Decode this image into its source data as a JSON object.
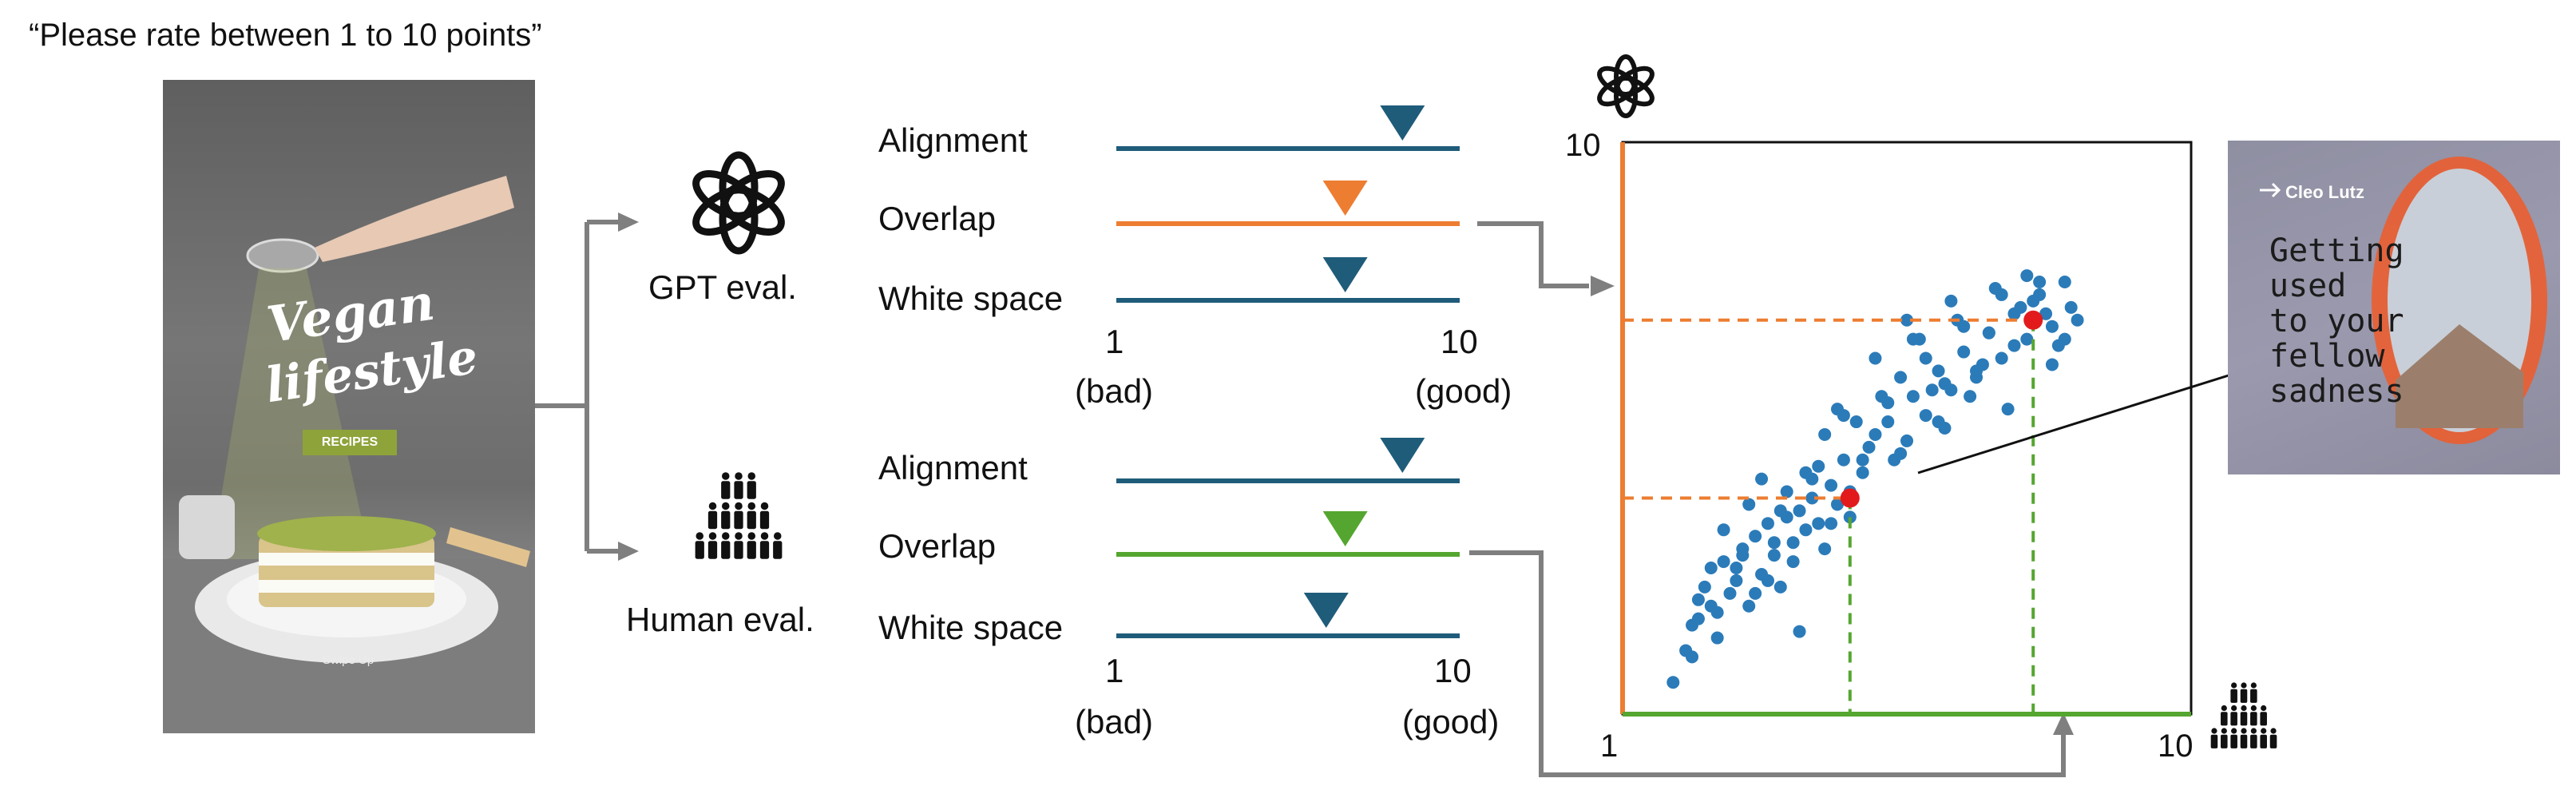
{
  "header": {
    "prompt": "“Please rate between 1 to 10 points”"
  },
  "poster": {
    "title_line1": "Vegan",
    "title_line2": "lifestyle",
    "badge": "RECIPES",
    "swipe": "Swipe Up"
  },
  "evaluators": {
    "gpt": "GPT eval.",
    "human": "Human eval."
  },
  "criteria": [
    "Alignment",
    "Overlap",
    "White space"
  ],
  "scale": {
    "min": "1",
    "max": "10",
    "min_label": "(bad)",
    "max_label": "(good)"
  },
  "ratings": {
    "gpt": [
      {
        "criterion": "Alignment",
        "value": 8.5
      },
      {
        "criterion": "Overlap",
        "value": 7.0
      },
      {
        "criterion": "White space",
        "value": 7.0
      }
    ],
    "human": [
      {
        "criterion": "Alignment",
        "value": 8.5
      },
      {
        "criterion": "Overlap",
        "value": 7.0
      },
      {
        "criterion": "White space",
        "value": 6.5
      }
    ]
  },
  "colors": {
    "blue": "#1f5c7a",
    "orange": "#ed7d31",
    "green": "#55a630",
    "point": "#2b7bb9",
    "red": "#e31a1c",
    "gray": "#7f7f7f"
  },
  "scatter": {
    "y_max_label": "10",
    "x_min_label": "1",
    "x_max_label": "10",
    "highlight_1": {
      "x": 7.5,
      "y": 7.2
    },
    "highlight_2": {
      "x": 4.6,
      "y": 4.4
    }
  },
  "chart_data": {
    "type": "scatter",
    "x": [
      1.8,
      2.0,
      2.1,
      2.2,
      2.3,
      2.4,
      2.5,
      2.6,
      2.7,
      2.8,
      2.9,
      3.0,
      3.1,
      3.2,
      3.3,
      3.4,
      3.5,
      3.6,
      3.7,
      3.8,
      3.9,
      4.0,
      4.1,
      4.2,
      4.3,
      4.4,
      4.5,
      4.6,
      4.8,
      5.0,
      5.2,
      5.4,
      5.6,
      5.8,
      6.0,
      6.2,
      6.4,
      6.6,
      6.8,
      7.0,
      7.2,
      7.4,
      7.6,
      7.8,
      8.0,
      8.2,
      2.2,
      2.5,
      2.8,
      3.1,
      3.4,
      3.7,
      4.0,
      4.3,
      4.6,
      4.9,
      5.2,
      5.5,
      5.8,
      6.1,
      6.4,
      6.7,
      7.0,
      7.3,
      7.6,
      7.9,
      8.1,
      2.6,
      3.0,
      3.3,
      3.6,
      3.9,
      4.2,
      4.5,
      4.8,
      5.1,
      5.4,
      5.7,
      6.0,
      6.3,
      6.6,
      6.9,
      7.2,
      7.5,
      7.8,
      2.4,
      2.9,
      3.5,
      4.1,
      4.7,
      5.3,
      5.9,
      6.5,
      7.1,
      7.7,
      3.8,
      4.4,
      5.0,
      5.6,
      6.2,
      6.8,
      7.4,
      8.0,
      2.1,
      3.2,
      5.5,
      6.1
    ],
    "y": [
      1.5,
      2.0,
      2.4,
      2.8,
      3.0,
      3.3,
      2.6,
      3.4,
      2.9,
      3.1,
      3.6,
      2.7,
      3.8,
      3.2,
      4.0,
      3.5,
      3.0,
      4.1,
      3.7,
      4.2,
      3.9,
      4.4,
      4.0,
      3.6,
      4.6,
      4.3,
      5.0,
      4.1,
      4.8,
      5.4,
      5.6,
      5.1,
      6.0,
      5.7,
      6.4,
      6.1,
      6.7,
      6.3,
      7.0,
      6.6,
      7.3,
      6.9,
      7.6,
      7.1,
      7.8,
      7.2,
      2.5,
      2.2,
      3.3,
      2.9,
      3.7,
      3.4,
      4.7,
      4.0,
      4.5,
      5.2,
      5.9,
      5.3,
      6.6,
      6.2,
      7.1,
      6.5,
      7.6,
      7.4,
      7.8,
      6.8,
      7.4,
      3.9,
      4.3,
      3.1,
      4.5,
      4.8,
      5.4,
      5.7,
      5.0,
      6.0,
      6.3,
      6.9,
      5.6,
      7.2,
      6.4,
      7.7,
      6.8,
      7.5,
      6.5,
      2.7,
      3.5,
      4.2,
      4.9,
      5.6,
      5.0,
      6.1,
      6.0,
      5.8,
      7.3,
      2.3,
      5.8,
      6.6,
      6.9,
      7.5,
      7.0,
      7.9,
      6.9,
      1.9,
      4.7,
      7.2,
      5.5
    ],
    "xlim": [
      1,
      10
    ],
    "ylim": [
      1,
      10
    ]
  }
}
